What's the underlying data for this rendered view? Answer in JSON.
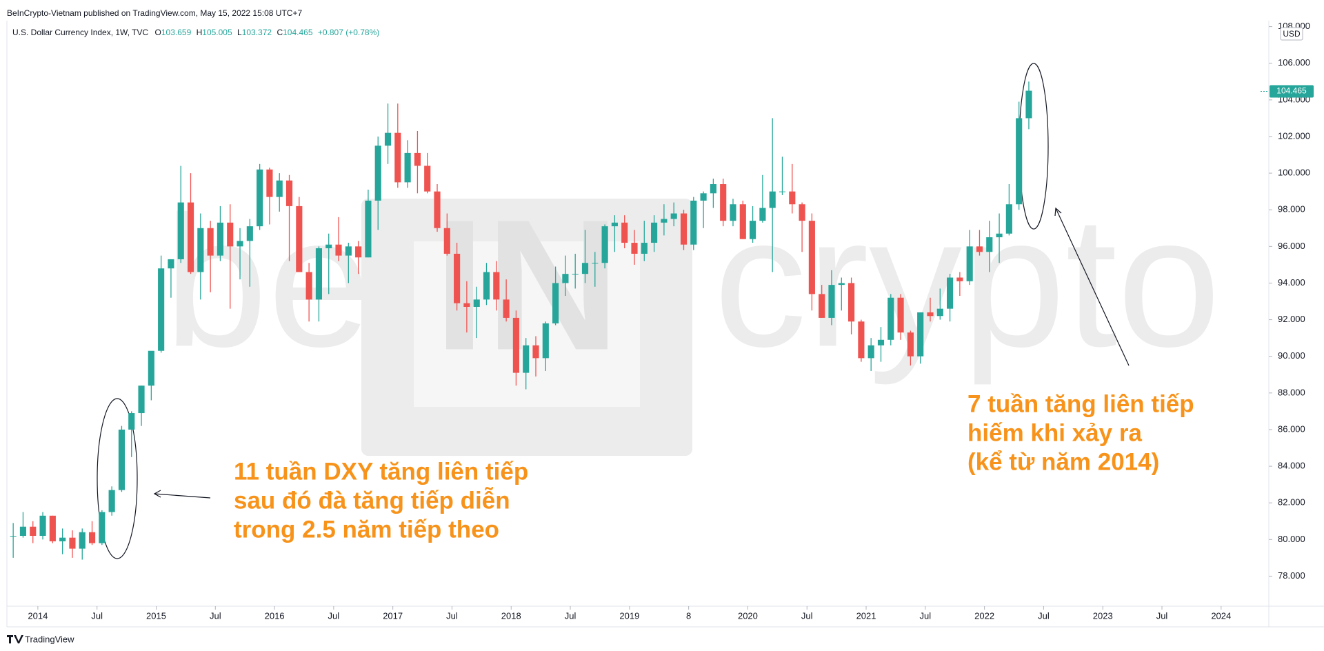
{
  "header": {
    "publisher": "BeInCrypto-Vietnam published on TradingView.com, May 15, 2022 15:08 UTC+7",
    "symbol": "U.S. Dollar Currency Index, 1W, TVC",
    "open_label": "O",
    "open": "103.659",
    "high_label": "H",
    "high": "105.005",
    "low_label": "L",
    "low": "103.372",
    "close_label": "C",
    "close": "104.465",
    "change": "+0.807 (+0.78%)"
  },
  "footer": {
    "brand": "TradingView"
  },
  "watermark": [
    "be",
    "IN",
    "crypto"
  ],
  "chart_data": {
    "type": "candlestick",
    "currency": "USD",
    "up_color": "#26a69a",
    "down_color": "#ef5350",
    "last_price": {
      "value": 104.465,
      "label": "104.465"
    },
    "annotations": [
      [
        "11 tuần DXY tăng liên tiếp",
        "sau đó đà tăng tiếp diễn",
        "trong 2.5 năm tiếp theo"
      ],
      [
        "7 tuần tăng liên tiếp",
        "hiếm khi xảy ra",
        "(kể từ năm 2014)"
      ]
    ],
    "x": [
      "2013-10",
      "2013-11",
      "2013-12",
      "2014-01",
      "2014-02",
      "2014-03",
      "2014-04",
      "2014-05",
      "2014-06",
      "2014-07",
      "2014-08",
      "2014-09",
      "2014-10",
      "2014-11",
      "2014-12",
      "2015-01",
      "2015-02",
      "2015-03",
      "2015-04",
      "2015-05",
      "2015-06",
      "2015-07",
      "2015-08",
      "2015-09",
      "2015-10",
      "2015-11",
      "2015-12",
      "2016-01",
      "2016-02",
      "2016-03",
      "2016-04",
      "2016-05",
      "2016-06",
      "2016-07",
      "2016-08",
      "2016-09",
      "2016-10",
      "2016-11",
      "2016-12",
      "2017-01",
      "2017-02",
      "2017-03",
      "2017-04",
      "2017-05",
      "2017-06",
      "2017-07",
      "2017-08",
      "2017-09",
      "2017-10",
      "2017-11",
      "2017-12",
      "2018-01",
      "2018-02",
      "2018-03",
      "2018-04",
      "2018-05",
      "2018-06",
      "2018-07",
      "2018-08",
      "2018-09",
      "2018-10",
      "2018-11",
      "2018-12",
      "2019-01",
      "2019-02",
      "2019-03",
      "2019-04",
      "2019-05",
      "2019-06",
      "2019-07",
      "2019-08",
      "2019-09",
      "2019-10",
      "2019-11",
      "2019-12",
      "2020-01",
      "2020-02",
      "2020-03",
      "2020-04",
      "2020-05",
      "2020-06",
      "2020-07",
      "2020-08",
      "2020-09",
      "2020-10",
      "2020-11",
      "2020-12",
      "2021-01",
      "2021-02",
      "2021-03",
      "2021-04",
      "2021-05",
      "2021-06",
      "2021-07",
      "2021-08",
      "2021-09",
      "2021-10",
      "2021-11",
      "2021-12",
      "2022-01",
      "2022-02",
      "2022-03",
      "2022-04",
      "2022-05"
    ],
    "open": [
      80.2,
      80.2,
      80.7,
      80.2,
      81.3,
      79.9,
      80.1,
      79.5,
      80.4,
      79.8,
      81.5,
      82.7,
      86.0,
      86.9,
      88.4,
      90.3,
      94.8,
      95.3,
      98.4,
      94.6,
      97.0,
      95.5,
      97.3,
      96.0,
      96.3,
      97.1,
      100.2,
      98.7,
      99.6,
      98.2,
      94.6,
      93.1,
      95.9,
      96.1,
      95.5,
      96.0,
      95.4,
      98.5,
      101.5,
      102.2,
      99.5,
      101.1,
      100.4,
      99.0,
      97.0,
      95.6,
      92.9,
      92.7,
      93.1,
      94.6,
      93.1,
      92.1,
      89.1,
      90.6,
      89.9,
      91.8,
      94.0,
      94.5,
      94.5,
      95.1,
      95.1,
      97.1,
      97.3,
      96.2,
      95.6,
      96.2,
      97.3,
      97.5,
      97.8,
      96.1,
      98.5,
      98.9,
      99.4,
      97.4,
      98.3,
      96.4,
      97.4,
      98.1,
      99.0,
      99.0,
      98.3,
      97.4,
      93.4,
      92.1,
      93.9,
      94.0,
      91.9,
      89.9,
      90.6,
      90.9,
      93.2,
      91.3,
      90.0,
      92.4,
      92.2,
      92.6,
      94.3,
      94.1,
      96.0,
      95.7,
      96.5,
      96.7,
      98.3,
      103.0
    ],
    "high": [
      80.9,
      81.5,
      81.0,
      81.5,
      81.3,
      80.6,
      80.5,
      80.6,
      81.0,
      81.6,
      82.9,
      86.2,
      87.0,
      88.4,
      90.2,
      95.5,
      95.3,
      100.4,
      100.0,
      97.8,
      97.4,
      98.2,
      98.3,
      97.0,
      97.5,
      100.5,
      100.3,
      100.0,
      99.9,
      98.7,
      95.1,
      96.0,
      96.7,
      97.6,
      96.2,
      96.3,
      99.1,
      102.0,
      103.8,
      103.8,
      101.8,
      102.3,
      101.1,
      99.4,
      97.8,
      96.2,
      94.1,
      93.8,
      95.1,
      95.2,
      94.2,
      92.5,
      91.0,
      91.1,
      91.9,
      94.9,
      95.5,
      95.6,
      96.9,
      95.7,
      97.2,
      97.7,
      97.7,
      96.9,
      97.4,
      97.7,
      98.3,
      98.4,
      98.0,
      98.7,
      99.0,
      99.7,
      99.7,
      98.6,
      98.5,
      98.2,
      99.9,
      103.0,
      100.9,
      100.5,
      98.4,
      97.8,
      93.9,
      94.7,
      94.3,
      94.3,
      92.0,
      91.0,
      91.6,
      93.4,
      93.4,
      91.4,
      92.4,
      93.2,
      93.7,
      94.5,
      94.6,
      96.9,
      96.9,
      97.4,
      97.8,
      99.4,
      103.9,
      105.0
    ],
    "low": [
      79.0,
      80.1,
      79.8,
      80.0,
      79.8,
      79.2,
      79.0,
      78.9,
      79.7,
      79.7,
      81.3,
      82.6,
      84.5,
      86.2,
      87.6,
      90.2,
      93.2,
      95.1,
      94.5,
      93.1,
      93.5,
      95.2,
      92.6,
      94.2,
      93.8,
      96.9,
      97.2,
      97.9,
      95.2,
      94.6,
      91.9,
      91.9,
      93.4,
      95.2,
      94.0,
      94.5,
      95.4,
      96.9,
      100.5,
      99.2,
      99.2,
      98.9,
      98.9,
      96.8,
      95.5,
      92.5,
      91.3,
      91.0,
      92.8,
      92.5,
      91.9,
      88.4,
      88.2,
      88.9,
      89.2,
      91.7,
      93.3,
      93.7,
      94.0,
      93.8,
      94.8,
      95.7,
      95.9,
      95.0,
      95.2,
      95.7,
      96.6,
      97.1,
      95.8,
      95.8,
      97.0,
      98.1,
      97.1,
      97.1,
      96.4,
      96.2,
      97.3,
      94.6,
      98.8,
      97.8,
      95.7,
      92.5,
      92.1,
      91.7,
      92.5,
      91.2,
      89.7,
      89.2,
      89.7,
      90.6,
      90.9,
      89.5,
      89.6,
      91.9,
      92.0,
      91.9,
      93.3,
      93.9,
      95.5,
      94.6,
      95.1,
      96.6,
      98.0,
      102.4
    ],
    "close": [
      80.2,
      80.7,
      80.2,
      81.3,
      79.9,
      80.1,
      79.5,
      80.4,
      79.8,
      81.5,
      82.7,
      86.0,
      86.9,
      88.4,
      90.3,
      94.8,
      95.3,
      98.4,
      94.6,
      97.0,
      95.5,
      97.3,
      96.0,
      96.3,
      97.1,
      100.2,
      98.7,
      99.6,
      98.2,
      94.6,
      93.1,
      95.9,
      96.1,
      95.5,
      96.0,
      95.4,
      98.5,
      101.5,
      102.2,
      99.5,
      101.1,
      100.4,
      99.0,
      97.0,
      95.6,
      92.9,
      92.7,
      93.1,
      94.6,
      93.1,
      92.1,
      89.1,
      90.6,
      89.9,
      91.8,
      94.0,
      94.5,
      94.5,
      95.1,
      95.1,
      97.1,
      97.3,
      96.2,
      95.6,
      96.2,
      97.3,
      97.5,
      97.8,
      96.1,
      98.5,
      98.9,
      99.4,
      97.4,
      98.3,
      96.4,
      97.4,
      98.1,
      99.0,
      99.0,
      98.3,
      97.4,
      93.4,
      92.1,
      93.9,
      94.0,
      91.9,
      89.9,
      90.6,
      90.9,
      93.2,
      91.3,
      90.0,
      92.4,
      92.2,
      92.6,
      94.3,
      94.1,
      96.0,
      95.7,
      96.5,
      96.7,
      98.3,
      103.0,
      104.5
    ],
    "xlim": [
      "2013-10",
      "2024-05"
    ],
    "xticks": [
      {
        "value": "2014-01",
        "label": "2014"
      },
      {
        "value": "2014-07",
        "label": "Jul"
      },
      {
        "value": "2015-01",
        "label": "2015"
      },
      {
        "value": "2015-07",
        "label": "Jul"
      },
      {
        "value": "2016-01",
        "label": "2016"
      },
      {
        "value": "2016-07",
        "label": "Jul"
      },
      {
        "value": "2017-01",
        "label": "2017"
      },
      {
        "value": "2017-07",
        "label": "Jul"
      },
      {
        "value": "2018-01",
        "label": "2018"
      },
      {
        "value": "2018-07",
        "label": "Jul"
      },
      {
        "value": "2019-01",
        "label": "2019"
      },
      {
        "value": "2019-07",
        "label": "8"
      },
      {
        "value": "2020-01",
        "label": "2020"
      },
      {
        "value": "2020-07",
        "label": "Jul"
      },
      {
        "value": "2021-01",
        "label": "2021"
      },
      {
        "value": "2021-07",
        "label": "Jul"
      },
      {
        "value": "2022-01",
        "label": "2022"
      },
      {
        "value": "2022-07",
        "label": "Jul"
      },
      {
        "value": "2023-01",
        "label": "2023"
      },
      {
        "value": "2023-07",
        "label": "Jul"
      },
      {
        "value": "2024-01",
        "label": "2024"
      }
    ],
    "ylim": [
      76.36,
      108.06
    ],
    "yticks": [
      {
        "value": 78,
        "label": "78.000"
      },
      {
        "value": 80,
        "label": "80.000"
      },
      {
        "value": 82,
        "label": "82.000"
      },
      {
        "value": 84,
        "label": "84.000"
      },
      {
        "value": 86,
        "label": "86.000"
      },
      {
        "value": 88,
        "label": "88.000"
      },
      {
        "value": 90,
        "label": "90.000"
      },
      {
        "value": 92,
        "label": "92.000"
      },
      {
        "value": 94,
        "label": "94.000"
      },
      {
        "value": 96,
        "label": "96.000"
      },
      {
        "value": 98,
        "label": "98.000"
      },
      {
        "value": 100,
        "label": "100.000"
      },
      {
        "value": 102,
        "label": "102.000"
      },
      {
        "value": 104,
        "label": "104.000"
      },
      {
        "value": 106,
        "label": "106.000"
      },
      {
        "value": 108,
        "label": "108.000"
      }
    ],
    "grid": false
  }
}
